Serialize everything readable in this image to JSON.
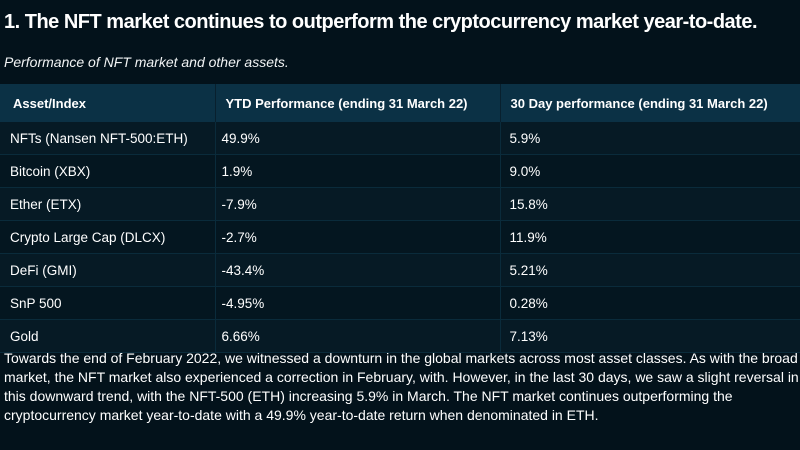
{
  "title": "1. The NFT market continues to outperform the cryptocurrency market year-to-date.",
  "subtitle": "Performance of NFT market and other assets.",
  "table": {
    "headers": [
      "Asset/Index",
      "YTD Performance (ending 31 March 22)",
      "30 Day performance (ending 31 March 22)"
    ],
    "rows": [
      {
        "asset": "NFTs (Nansen NFT-500:ETH)",
        "ytd": "49.9%",
        "d30": "5.9%"
      },
      {
        "asset": "Bitcoin (XBX)",
        "ytd": "1.9%",
        "d30": "9.0%"
      },
      {
        "asset": "Ether (ETX)",
        "ytd": "-7.9%",
        "d30": "15.8%"
      },
      {
        "asset": "Crypto Large Cap (DLCX)",
        "ytd": "-2.7%",
        "d30": "11.9%"
      },
      {
        "asset": "DeFi (GMI)",
        "ytd": "-43.4%",
        "d30": "5.21%"
      },
      {
        "asset": "SnP 500",
        "ytd": "-4.95%",
        "d30": "0.28%"
      },
      {
        "asset": "Gold",
        "ytd": "6.66%",
        "d30": "7.13%"
      }
    ]
  },
  "body": "Towards the end of February 2022, we witnessed a downturn in the global markets across most asset classes. As with the broad market, the NFT market also experienced a correction in February, with. However, in the last 30 days, we saw a slight reversal in this downward trend, with the NFT-500 (ETH) increasing 5.9% in March. The NFT market continues outperforming the cryptocurrency market year-to-date with a 49.9% year-to-date return when denominated in ETH.",
  "colors": {
    "background": "#03121b",
    "header": "#0b3145",
    "text": "#ffffff"
  }
}
